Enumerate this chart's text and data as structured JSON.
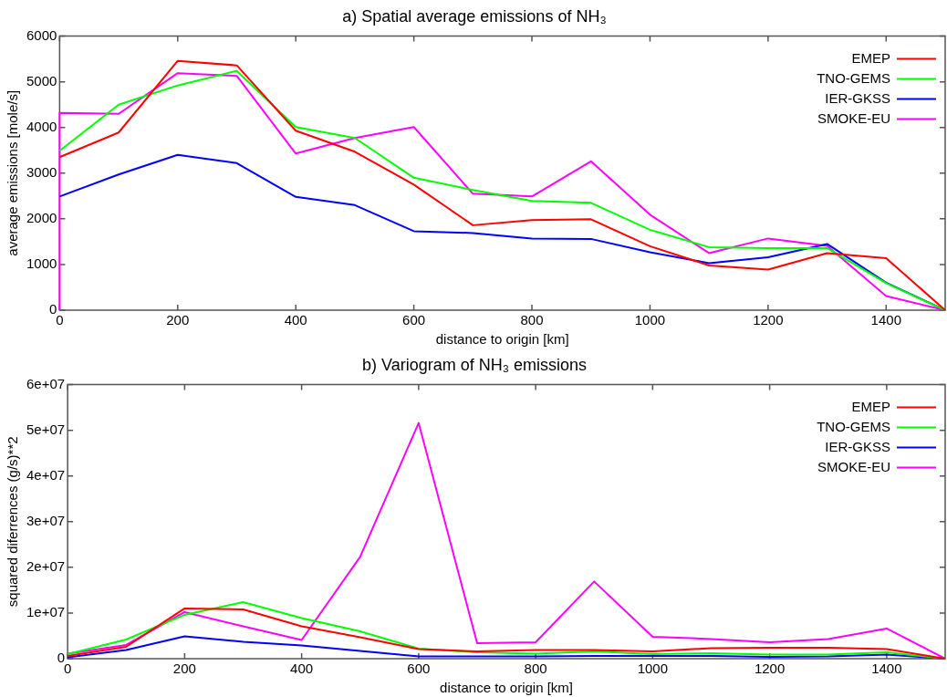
{
  "chart_data": [
    {
      "type": "line",
      "title": "a) Spatial average emissions of NH₃",
      "xlabel": "distance to origin [km]",
      "ylabel": "average emissions [mole/s]",
      "legend": "top right",
      "x": [
        0,
        0,
        100,
        200,
        300,
        400,
        500,
        600,
        700,
        800,
        900,
        1000,
        1100,
        1200,
        1300,
        1400,
        1500
      ],
      "series": [
        {
          "name": "EMEP",
          "color": "#ff0000",
          "values": [
            null,
            3350,
            3890,
            5460,
            5360,
            3930,
            3470,
            2750,
            1860,
            1970,
            1990,
            1400,
            980,
            890,
            1250,
            1140,
            0
          ]
        },
        {
          "name": "TNO-GEMS",
          "color": "#00ff00",
          "values": [
            null,
            3490,
            4500,
            4920,
            5240,
            4010,
            3770,
            2900,
            2630,
            2390,
            2350,
            1760,
            1380,
            1360,
            1360,
            590,
            0
          ]
        },
        {
          "name": "IER-GKSS",
          "color": "#0000ff",
          "values": [
            null,
            2490,
            2970,
            3400,
            3220,
            2480,
            2300,
            1730,
            1690,
            1570,
            1560,
            1270,
            1030,
            1160,
            1450,
            600,
            0
          ]
        },
        {
          "name": "SMOKE-EU",
          "color": "#ff00ff",
          "values": [
            0,
            4320,
            4300,
            5190,
            5130,
            3430,
            3770,
            4010,
            2550,
            2490,
            3260,
            2090,
            1250,
            1570,
            1410,
            310,
            0
          ]
        }
      ],
      "xlim": [
        0,
        1500
      ],
      "xticks": [
        0,
        200,
        400,
        600,
        800,
        1000,
        1200,
        1400
      ],
      "ylim": [
        0,
        6000
      ],
      "yticks": [
        0,
        1000,
        2000,
        3000,
        4000,
        5000,
        6000
      ]
    },
    {
      "type": "line",
      "title": "b) Variogram of NH₃ emissions",
      "xlabel": "distance to origin [km]",
      "ylabel": "squared diferrences (g/s)**2",
      "legend": "top right",
      "x": [
        0,
        100,
        200,
        300,
        400,
        500,
        600,
        700,
        800,
        900,
        1000,
        1100,
        1200,
        1300,
        1400,
        1500
      ],
      "series": [
        {
          "name": "EMEP",
          "color": "#ff0000",
          "values": [
            600000,
            2600000,
            11000000,
            10800000,
            7100000,
            4700000,
            2100000,
            1600000,
            1900000,
            1900000,
            1600000,
            2300000,
            2400000,
            2400000,
            2100000,
            0
          ]
        },
        {
          "name": "TNO-GEMS",
          "color": "#00ff00",
          "values": [
            1000000,
            4200000,
            9600000,
            12400000,
            8900000,
            6000000,
            2200000,
            1400000,
            1100000,
            1600000,
            1000000,
            1200000,
            900000,
            900000,
            1400000,
            0
          ]
        },
        {
          "name": "IER-GKSS",
          "color": "#0000ff",
          "values": [
            300000,
            1900000,
            4900000,
            3700000,
            2900000,
            1700000,
            500000,
            500000,
            500000,
            600000,
            600000,
            600000,
            400000,
            500000,
            900000,
            0
          ]
        },
        {
          "name": "SMOKE-EU",
          "color": "#ff00ff",
          "values": [
            1100000,
            3000000,
            10200000,
            7100000,
            4100000,
            22300000,
            51600000,
            3400000,
            3600000,
            16900000,
            4800000,
            4300000,
            3600000,
            4300000,
            6600000,
            0
          ]
        }
      ],
      "xlim": [
        0,
        1500
      ],
      "xticks": [
        0,
        200,
        400,
        600,
        800,
        1000,
        1200,
        1400
      ],
      "ylim": [
        0,
        60000000
      ],
      "yticks": [
        0,
        {
          "value": 10000000,
          "label": "1e+07"
        },
        {
          "value": 20000000,
          "label": "2e+07"
        },
        {
          "value": 30000000,
          "label": "3e+07"
        },
        {
          "value": 40000000,
          "label": "4e+07"
        },
        {
          "value": 50000000,
          "label": "5e+07"
        },
        {
          "value": 60000000,
          "label": "6e+07"
        }
      ]
    }
  ]
}
